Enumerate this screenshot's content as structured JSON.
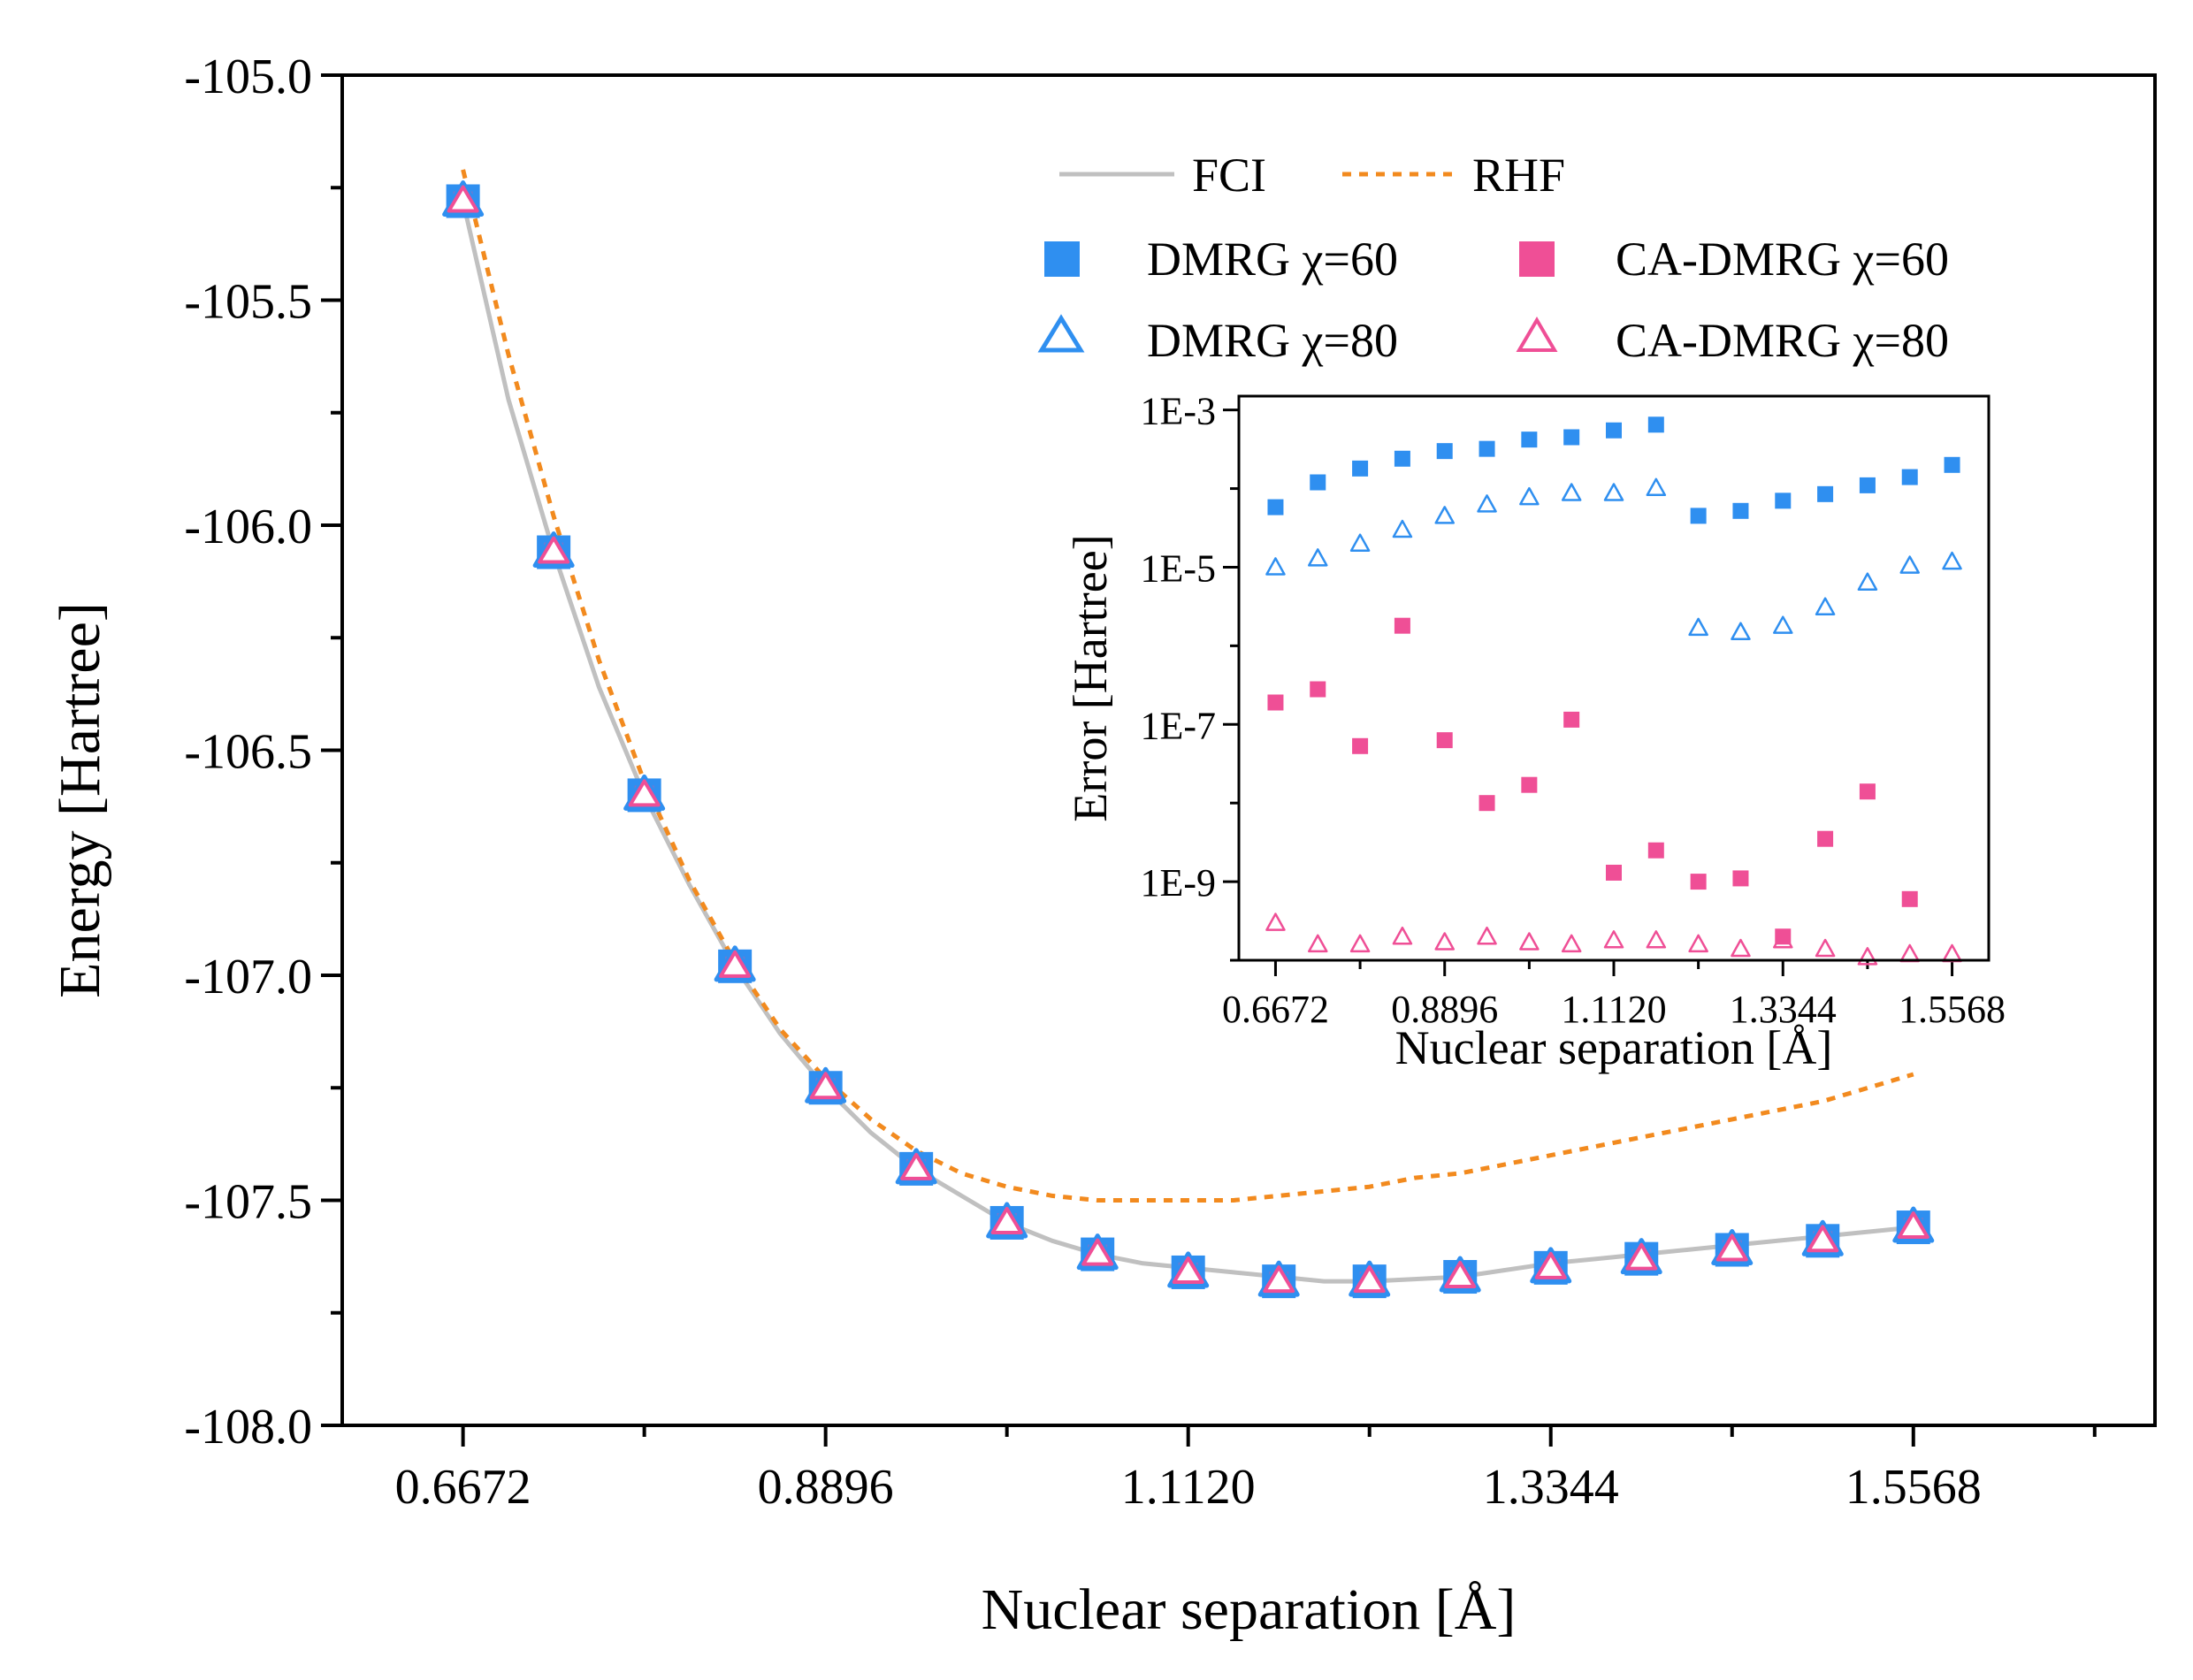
{
  "colors": {
    "fci": "#c0c0c0",
    "rhf": "#f28a1e",
    "dmrg": "#2f8ff0",
    "ca_dmrg": "#ef4f96",
    "axis": "#000000"
  },
  "chart_data": [
    {
      "type": "line",
      "name": "main",
      "xlabel": "Nuclear separation [Å]",
      "ylabel": "Energy [Hartree]",
      "xlim": [
        0.5931,
        1.705
      ],
      "ylim": [
        -108.0,
        -105.0
      ],
      "xticks": [
        0.6672,
        0.8896,
        1.112,
        1.3344,
        1.5568
      ],
      "xtick_labels": [
        "0.6672",
        "0.8896",
        "1.1120",
        "1.3344",
        "1.5568"
      ],
      "yticks": [
        -105.0,
        -105.5,
        -106.0,
        -106.5,
        -107.0,
        -107.5,
        -108.0
      ],
      "ytick_labels": [
        "-105.0",
        "-105.5",
        "-106.0",
        "-106.5",
        "-107.0",
        "-107.5",
        "-108.0"
      ],
      "x": [
        0.6672,
        0.7228,
        0.7784,
        0.834,
        0.8896,
        0.9452,
        1.0008,
        1.0564,
        1.112,
        1.1676,
        1.2232,
        1.2788,
        1.3344,
        1.39,
        1.4456,
        1.5012,
        1.5568
      ],
      "lines": [
        {
          "name": "FCI",
          "style": "solid",
          "x": [
            0.6672,
            0.695,
            0.7228,
            0.7506,
            0.7784,
            0.8062,
            0.834,
            0.8618,
            0.8896,
            0.9174,
            0.9452,
            0.973,
            1.0008,
            1.0286,
            1.0564,
            1.0842,
            1.112,
            1.1398,
            1.1676,
            1.1954,
            1.2232,
            1.251,
            1.2788,
            1.3066,
            1.3344,
            1.3622,
            1.39,
            1.4178,
            1.4456,
            1.4734,
            1.5012,
            1.529,
            1.5568
          ],
          "y": [
            -105.28,
            -105.72,
            -106.06,
            -106.36,
            -106.6,
            -106.8,
            -106.98,
            -107.13,
            -107.25,
            -107.35,
            -107.43,
            -107.49,
            -107.55,
            -107.59,
            -107.62,
            -107.64,
            -107.65,
            -107.66,
            -107.67,
            -107.68,
            -107.68,
            -107.675,
            -107.67,
            -107.655,
            -107.64,
            -107.63,
            -107.62,
            -107.61,
            -107.6,
            -107.59,
            -107.58,
            -107.57,
            -107.56
          ]
        },
        {
          "name": "RHF",
          "style": "dashed",
          "x": [
            0.6672,
            0.695,
            0.7228,
            0.7506,
            0.7784,
            0.8062,
            0.834,
            0.8618,
            0.8896,
            0.9174,
            0.9452,
            0.973,
            1.0008,
            1.0286,
            1.0564,
            1.0842,
            1.112,
            1.1398,
            1.1676,
            1.1954,
            1.2232,
            1.251,
            1.2788,
            1.3066,
            1.3344,
            1.3622,
            1.39,
            1.4178,
            1.4456,
            1.4734,
            1.5012,
            1.529,
            1.5568
          ],
          "y": [
            -105.21,
            -105.62,
            -105.98,
            -106.3,
            -106.57,
            -106.79,
            -106.97,
            -107.12,
            -107.23,
            -107.32,
            -107.39,
            -107.44,
            -107.47,
            -107.49,
            -107.5,
            -107.5,
            -107.5,
            -107.5,
            -107.49,
            -107.48,
            -107.47,
            -107.45,
            -107.44,
            -107.42,
            -107.4,
            -107.38,
            -107.36,
            -107.34,
            -107.32,
            -107.3,
            -107.28,
            -107.25,
            -107.22
          ]
        }
      ],
      "series": [
        {
          "name": "DMRG χ=60",
          "marker": "filled-square",
          "values": [
            -105.28,
            -106.06,
            -106.6,
            -106.98,
            -107.25,
            -107.43,
            -107.55,
            -107.62,
            -107.66,
            -107.68,
            -107.68,
            -107.67,
            -107.65,
            -107.63,
            -107.61,
            -107.59,
            -107.56
          ]
        },
        {
          "name": "DMRG χ=80",
          "marker": "open-triangle",
          "values": [
            -105.28,
            -106.06,
            -106.6,
            -106.98,
            -107.25,
            -107.43,
            -107.55,
            -107.62,
            -107.66,
            -107.68,
            -107.68,
            -107.67,
            -107.65,
            -107.63,
            -107.61,
            -107.59,
            -107.56
          ]
        },
        {
          "name": "CA-DMRG χ=60",
          "marker": "filled-square",
          "values": [
            -105.28,
            -106.06,
            -106.6,
            -106.98,
            -107.25,
            -107.43,
            -107.55,
            -107.62,
            -107.66,
            -107.68,
            -107.68,
            -107.67,
            -107.65,
            -107.63,
            -107.61,
            -107.59,
            -107.56
          ]
        },
        {
          "name": "CA-DMRG χ=80",
          "marker": "open-triangle",
          "values": [
            -105.28,
            -106.06,
            -106.6,
            -106.98,
            -107.25,
            -107.43,
            -107.55,
            -107.62,
            -107.66,
            -107.68,
            -107.68,
            -107.67,
            -107.65,
            -107.63,
            -107.61,
            -107.59,
            -107.56
          ]
        }
      ],
      "legend": {
        "placement": "top-right",
        "entries": [
          "FCI",
          "RHF",
          "DMRG χ=60",
          "CA-DMRG χ=60",
          "DMRG χ=80",
          "CA-DMRG χ=80"
        ]
      }
    },
    {
      "type": "scatter",
      "name": "inset",
      "xlabel": "Nuclear separation [Å]",
      "ylabel": "Error [Hartree]",
      "yscale": "log",
      "xlim": [
        0.619,
        1.605
      ],
      "ylim": [
        1e-10,
        0.0015
      ],
      "xticks": [
        0.6672,
        0.8896,
        1.112,
        1.3344,
        1.5568
      ],
      "xtick_labels": [
        "0.6672",
        "0.8896",
        "1.1120",
        "1.3344",
        "1.5568"
      ],
      "yticks": [
        0.001,
        1e-05,
        1e-07,
        1e-09
      ],
      "ytick_labels": [
        "1E-3",
        "1E-5",
        "1E-7",
        "1E-9"
      ],
      "x": [
        0.6672,
        0.7228,
        0.7784,
        0.834,
        0.8896,
        0.9452,
        1.0008,
        1.0564,
        1.112,
        1.1676,
        1.2232,
        1.2788,
        1.3344,
        1.39,
        1.4456,
        1.5012,
        1.5568
      ],
      "series": [
        {
          "name": "DMRG χ=60",
          "marker": "filled-square",
          "values": [
            5.8e-05,
            0.00012,
            0.00018,
            0.00024,
            0.0003,
            0.00032,
            0.00042,
            0.00045,
            0.00055,
            0.00065,
            4.5e-05,
            5.2e-05,
            7e-05,
            8.5e-05,
            0.00011,
            0.00014,
            0.0002
          ]
        },
        {
          "name": "DMRG χ=80",
          "marker": "open-triangle",
          "values": [
            1e-05,
            1.3e-05,
            2e-05,
            3e-05,
            4.5e-05,
            6.3e-05,
            7.8e-05,
            8.8e-05,
            8.8e-05,
            0.000102,
            1.7e-06,
            1.5e-06,
            1.8e-06,
            3.1e-06,
            6.4e-06,
            1.05e-05,
            1.18e-05
          ]
        },
        {
          "name": "CA-DMRG χ=60",
          "marker": "filled-square",
          "values": [
            1.9e-07,
            2.8e-07,
            5.3e-08,
            1.8e-06,
            6.3e-08,
            1e-08,
            1.7e-08,
            1.15e-07,
            1.3e-09,
            2.5e-09,
            1e-09,
            1.1e-09,
            2e-10,
            3.5e-09,
            1.4e-08,
            6e-10,
            null
          ]
        },
        {
          "name": "CA-DMRG χ=80",
          "marker": "open-triangle",
          "values": [
            3e-10,
            1.6e-10,
            1.6e-10,
            2e-10,
            1.7e-10,
            2e-10,
            1.7e-10,
            1.6e-10,
            1.8e-10,
            1.8e-10,
            1.6e-10,
            1.4e-10,
            1.8e-10,
            1.4e-10,
            1.1e-10,
            1.2e-10,
            1.2e-10
          ]
        }
      ]
    }
  ]
}
